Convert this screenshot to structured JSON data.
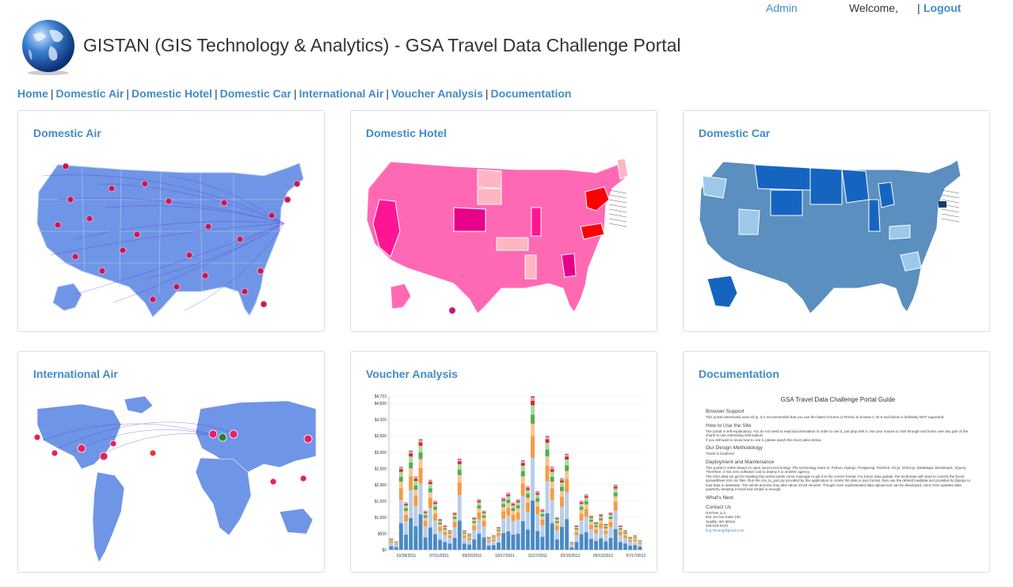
{
  "header": {
    "admin_label": "Admin",
    "welcome_label": "Welcome,",
    "separator": "|",
    "logout_label": "Logout",
    "title": "GISTAN (GIS Technology & Analytics) - GSA Travel Data Challenge Portal"
  },
  "nav": {
    "items": [
      {
        "label": "Home"
      },
      {
        "label": "Domestic Air"
      },
      {
        "label": "Domestic Hotel"
      },
      {
        "label": "Domestic Car"
      },
      {
        "label": "International Air"
      },
      {
        "label": "Voucher Analysis"
      },
      {
        "label": "Documentation"
      }
    ],
    "separator": "|"
  },
  "panels": {
    "domestic_air": {
      "title": "Domestic Air"
    },
    "domestic_hotel": {
      "title": "Domestic Hotel"
    },
    "domestic_car": {
      "title": "Domestic Car"
    },
    "international_air": {
      "title": "International Air"
    },
    "voucher_analysis": {
      "title": "Voucher Analysis"
    },
    "documentation": {
      "title": "Documentation"
    }
  },
  "colors": {
    "link": "#428bca",
    "air_map": "#6f95e6",
    "hotel_map": "#ff69b4",
    "car_map": "#5a8fc0",
    "car_dark": "#1565c0"
  },
  "doc": {
    "title": "GSA Travel Data Challenge Portal Guide",
    "browser_support": "Browser Support",
    "browser_text": "This portal extensively uses d3.js. It is recommended that you use the latest Chrome or Firefox to browse it. IE 8 and below is definitely NOT supported.",
    "how_to": "How to Use the Site",
    "how_text": "The portal is self-explanatory. You do not need to read documentation in order to use it, just play with it, use your mouse to click through and hover over any part of the charts to see interesting information!",
    "how_text2": "If you still want to know how to use it, please watch the short video below:",
    "design": "Our Design Methodology",
    "design_text": "Travel is localized.",
    "deploy": "Deployment and Maintenance",
    "deploy_text": "This portal is 100% based on open source technology. The technology stack is: Python, Django, Postgresql, PostGIS, D3.js, NVD3.js, DataMaps, Bootstrap3, JQuery. Therefore, it has zero software cost to deploy it to another agency.",
    "deploy_text2": "The GSA data we got for building this portal needs some massage to get it to the correct format. For future data update, the technician will need to convert the Excel spreadsheet into csv files. Run the csv_to_json.py provided by this application to create the data in json format, then use the default loaddata tool provided by Django to load data to database. The whole process may take about 10-20 minutes. Though more sophisticated data upload tool can be developed, since GSA updates data quarterly, keeping it small and simple is enough.",
    "whats_next": "What's Next",
    "contact": "Contact Us",
    "contact_name": "GISTAN LLC",
    "contact_addr1": "816 1st Ave Suite 100",
    "contact_addr2": "Seattle, WA 98104",
    "contact_phone": "425-615-6410",
    "contact_email": "ting.zhuang@gmail.com"
  },
  "chart_data": {
    "type": "bar",
    "stacked": true,
    "ylim": [
      0,
      4723
    ],
    "yticks": [
      "$0",
      "$500",
      "$1,000",
      "$1,500",
      "$2,000",
      "$2,500",
      "$3,000",
      "$3,500",
      "$4,000",
      "$4,500",
      "$4,723"
    ],
    "xticks": [
      "02/28/2011",
      "07/11/2011",
      "09/22/2011",
      "10/17/2011",
      "11/27/2011",
      "02/15/2012",
      "05/13/2012",
      "07/17/2012"
    ],
    "series_colors": [
      "#4a8ac4",
      "#b9cde8",
      "#f59b42",
      "#f9c58f",
      "#58a957",
      "#a5dd9a",
      "#d62728",
      "#f79aa7",
      "#9467bd"
    ],
    "values": [
      350,
      260,
      2550,
      1450,
      3050,
      2250,
      3400,
      1200,
      2150,
      1500,
      950,
      750,
      600,
      1150,
      2800,
      600,
      500,
      1000,
      1550,
      1200,
      400,
      450,
      700,
      1600,
      1750,
      1450,
      1550,
      2750,
      1950,
      4723,
      1800,
      1250,
      3500,
      2550,
      1000,
      2200,
      2950,
      250,
      750,
      1500,
      1700,
      1050,
      850,
      1100,
      800,
      1150,
      2000,
      750,
      600,
      400,
      450,
      300
    ]
  }
}
